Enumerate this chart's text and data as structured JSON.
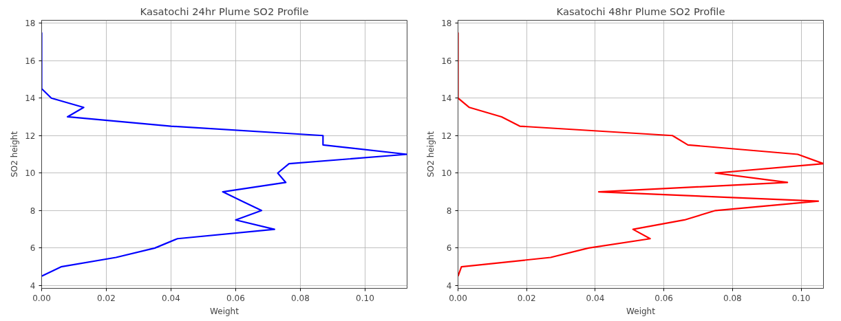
{
  "chart_data": [
    {
      "type": "line",
      "title": "Kasatochi 24hr Plume SO2 Profile",
      "xlabel": "Weight",
      "ylabel": "SO2 height",
      "grid": true,
      "line_style": "solid",
      "xlim": [
        0,
        0.113
      ],
      "ylim": [
        3.85,
        18.15
      ],
      "xticks": [
        {
          "value": 0,
          "label": "0.00"
        },
        {
          "value": 0.02,
          "label": "0.02"
        },
        {
          "value": 0.04,
          "label": "0.04"
        },
        {
          "value": 0.06,
          "label": "0.06"
        },
        {
          "value": 0.08,
          "label": "0.08"
        },
        {
          "value": 0.1,
          "label": "0.10"
        }
      ],
      "yticks": [
        4,
        6,
        8,
        10,
        12,
        14,
        16,
        18
      ],
      "series": [
        {
          "color": "#0000ff",
          "x": [
            0,
            0.006,
            0.023,
            0.035,
            0.042,
            0.072,
            0.06,
            0.068,
            0.062,
            0.056,
            0.0755,
            0.073,
            0.0765,
            0.113,
            0.087,
            0.087,
            0.04,
            0.008,
            0.013,
            0.003,
            0,
            0,
            0,
            0,
            0,
            0,
            0
          ],
          "values": [
            4.5,
            5,
            5.5,
            6,
            6.5,
            7,
            7.5,
            8,
            8.5,
            9,
            9.5,
            10,
            10.5,
            11,
            11.5,
            12,
            12.5,
            13,
            13.5,
            14,
            14.5,
            15,
            15.5,
            16,
            16.5,
            17,
            17.5
          ]
        }
      ]
    },
    {
      "type": "line",
      "title": "Kasatochi 48hr Plume SO2 Profile",
      "xlabel": "Weight",
      "ylabel": "SO2 height",
      "grid": true,
      "line_style": "solid",
      "xlim": [
        0,
        0.1065
      ],
      "ylim": [
        3.85,
        18.15
      ],
      "xticks": [
        {
          "value": 0,
          "label": "0.00"
        },
        {
          "value": 0.02,
          "label": "0.02"
        },
        {
          "value": 0.04,
          "label": "0.04"
        },
        {
          "value": 0.06,
          "label": "0.06"
        },
        {
          "value": 0.08,
          "label": "0.08"
        },
        {
          "value": 0.1,
          "label": "0.10"
        }
      ],
      "yticks": [
        4,
        6,
        8,
        10,
        12,
        14,
        16,
        18
      ],
      "series": [
        {
          "color": "#ff0000",
          "x": [
            0,
            0.001,
            0.027,
            0.038,
            0.056,
            0.051,
            0.066,
            0.075,
            0.105,
            0.041,
            0.096,
            0.075,
            0.1065,
            0.099,
            0.067,
            0.0625,
            0.018,
            0.0127,
            0.0033,
            0,
            0,
            0,
            0,
            0,
            0,
            0,
            0
          ],
          "values": [
            4.5,
            5,
            5.5,
            6,
            6.5,
            7,
            7.5,
            8,
            8.5,
            9,
            9.5,
            10,
            10.5,
            11,
            11.5,
            12,
            12.5,
            13,
            13.5,
            14,
            14.5,
            15,
            15.5,
            16,
            16.5,
            17,
            17.5
          ]
        }
      ]
    }
  ]
}
